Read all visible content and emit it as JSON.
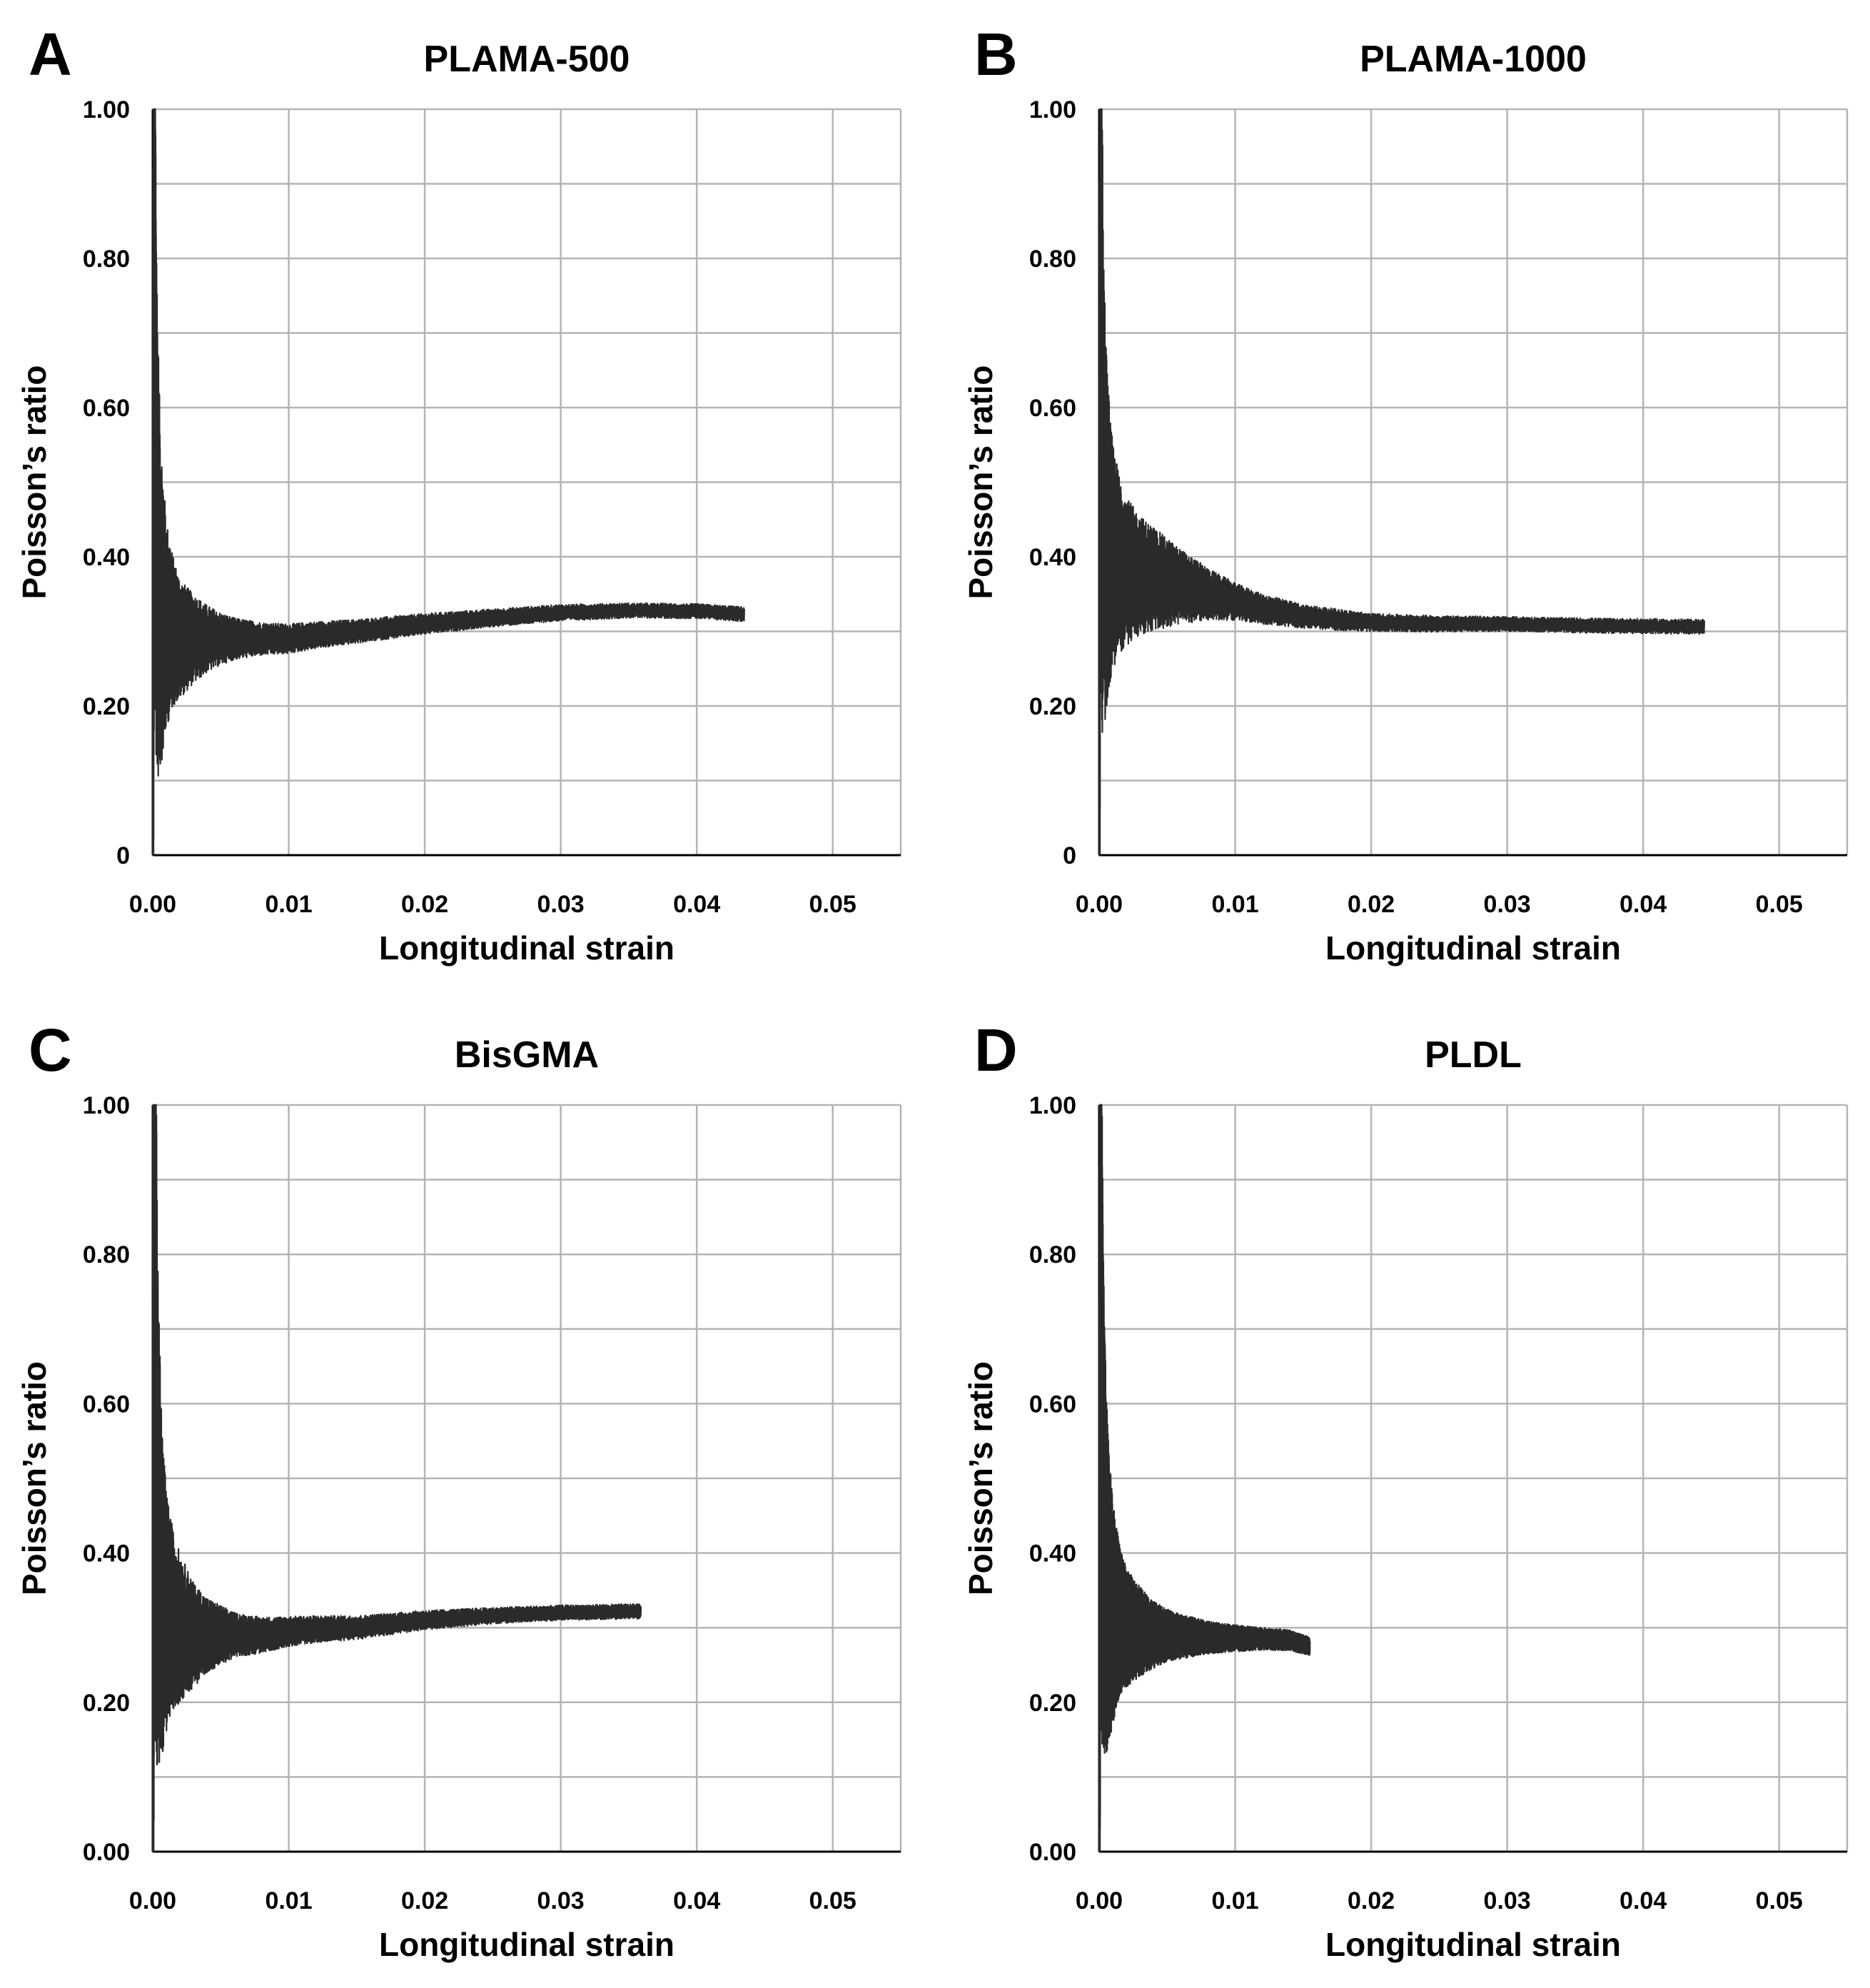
{
  "figure": {
    "panels": [
      {
        "letter": "A",
        "chart_index": 0
      },
      {
        "letter": "B",
        "chart_index": 1
      },
      {
        "letter": "C",
        "chart_index": 2
      },
      {
        "letter": "D",
        "chart_index": 3
      }
    ]
  },
  "chart_data": [
    {
      "type": "line",
      "title": "PLAMA-500",
      "xlabel": "Longitudinal strain",
      "ylabel": "Poisson’s ratio",
      "xlim": [
        0,
        0.055
      ],
      "ylim": [
        0,
        1.0
      ],
      "x_ticks": [
        0.0,
        0.01,
        0.02,
        0.03,
        0.04,
        0.05
      ],
      "x_tick_labels": [
        "0.00",
        "0.01",
        "0.02",
        "0.03",
        "0.04",
        "0.05"
      ],
      "y_ticks": [
        0,
        0.2,
        0.4,
        0.6,
        0.8,
        1.0
      ],
      "y_tick_labels": [
        "0",
        "0.20",
        "0.40",
        "0.60",
        "0.80",
        "1.00"
      ],
      "y_minor_gridlines": [
        0.1,
        0.3,
        0.5,
        0.7,
        0.9
      ],
      "grid": true,
      "series": [
        {
          "name": "PLAMA-500",
          "x": [
            0.0,
            0.0001,
            0.0002,
            0.0003,
            0.0004,
            0.0005,
            0.0006,
            0.0008,
            0.001,
            0.0015,
            0.002,
            0.003,
            0.004,
            0.005,
            0.006,
            0.008,
            0.01,
            0.012,
            0.015,
            0.02,
            0.025,
            0.03,
            0.035,
            0.04,
            0.0435
          ],
          "y": [
            0.0,
            0.82,
            0.6,
            0.45,
            0.4,
            0.36,
            0.34,
            0.32,
            0.31,
            0.3,
            0.29,
            0.29,
            0.29,
            0.29,
            0.29,
            0.29,
            0.29,
            0.295,
            0.3,
            0.31,
            0.318,
            0.325,
            0.328,
            0.327,
            0.323
          ],
          "noise_band": [
            0.8,
            0.6,
            0.45,
            0.35,
            0.3,
            0.25,
            0.22,
            0.18,
            0.14,
            0.1,
            0.08,
            0.06,
            0.045,
            0.035,
            0.028,
            0.022,
            0.02,
            0.018,
            0.016,
            0.014,
            0.012,
            0.011,
            0.01,
            0.01,
            0.01
          ]
        }
      ]
    },
    {
      "type": "line",
      "title": "PLAMA-1000",
      "xlabel": "Longitudinal strain",
      "ylabel": "Poisson’s ratio",
      "xlim": [
        0,
        0.055
      ],
      "ylim": [
        0,
        1.0
      ],
      "x_ticks": [
        0.0,
        0.01,
        0.02,
        0.03,
        0.04,
        0.05
      ],
      "x_tick_labels": [
        "0.00",
        "0.01",
        "0.02",
        "0.03",
        "0.04",
        "0.05"
      ],
      "y_ticks": [
        0,
        0.2,
        0.4,
        0.6,
        0.8,
        1.0
      ],
      "y_tick_labels": [
        "0",
        "0.20",
        "0.40",
        "0.60",
        "0.80",
        "1.00"
      ],
      "y_minor_gridlines": [
        0.1,
        0.3,
        0.5,
        0.7,
        0.9
      ],
      "grid": true,
      "series": [
        {
          "name": "PLAMA-1000",
          "x": [
            0.0,
            0.0001,
            0.0002,
            0.0003,
            0.0005,
            0.0007,
            0.001,
            0.0015,
            0.002,
            0.003,
            0.004,
            0.005,
            0.006,
            0.008,
            0.01,
            0.012,
            0.015,
            0.018,
            0.02,
            0.025,
            0.03,
            0.035,
            0.04,
            0.0445
          ],
          "y": [
            0.0,
            0.83,
            0.62,
            0.5,
            0.44,
            0.42,
            0.4,
            0.39,
            0.38,
            0.375,
            0.37,
            0.365,
            0.36,
            0.35,
            0.34,
            0.33,
            0.32,
            0.315,
            0.312,
            0.31,
            0.31,
            0.308,
            0.307,
            0.306
          ],
          "noise_band": [
            0.8,
            0.6,
            0.45,
            0.35,
            0.25,
            0.2,
            0.15,
            0.12,
            0.1,
            0.08,
            0.07,
            0.06,
            0.05,
            0.035,
            0.025,
            0.02,
            0.016,
            0.014,
            0.012,
            0.011,
            0.01,
            0.01,
            0.01,
            0.01
          ]
        }
      ]
    },
    {
      "type": "line",
      "title": "BisGMA",
      "xlabel": "Longitudinal strain",
      "ylabel": "Poisson’s ratio",
      "xlim": [
        0,
        0.055
      ],
      "ylim": [
        0,
        1.0
      ],
      "x_ticks": [
        0.0,
        0.01,
        0.02,
        0.03,
        0.04,
        0.05
      ],
      "x_tick_labels": [
        "0.00",
        "0.01",
        "0.02",
        "0.03",
        "0.04",
        "0.05"
      ],
      "y_ticks": [
        0,
        0.2,
        0.4,
        0.6,
        0.8,
        1.0
      ],
      "y_tick_labels": [
        "0.00",
        "0.20",
        "0.40",
        "0.60",
        "0.80",
        "1.00"
      ],
      "y_minor_gridlines": [
        0.1,
        0.3,
        0.5,
        0.7,
        0.9
      ],
      "grid": true,
      "series": [
        {
          "name": "BisGMA",
          "x": [
            0.0,
            0.0001,
            0.0002,
            0.0003,
            0.0005,
            0.0007,
            0.001,
            0.0015,
            0.002,
            0.003,
            0.004,
            0.005,
            0.006,
            0.008,
            0.01,
            0.012,
            0.015,
            0.02,
            0.025,
            0.03,
            0.0359
          ],
          "y": [
            0.0,
            1.0,
            0.7,
            0.5,
            0.4,
            0.35,
            0.32,
            0.31,
            0.3,
            0.29,
            0.29,
            0.29,
            0.29,
            0.29,
            0.295,
            0.298,
            0.3,
            0.31,
            0.316,
            0.32,
            0.322
          ],
          "noise_band": [
            0.9,
            0.8,
            0.6,
            0.4,
            0.28,
            0.22,
            0.16,
            0.12,
            0.1,
            0.07,
            0.05,
            0.04,
            0.03,
            0.024,
            0.02,
            0.018,
            0.016,
            0.013,
            0.011,
            0.01,
            0.01
          ]
        }
      ]
    },
    {
      "type": "line",
      "title": "PLDL",
      "xlabel": "Longitudinal strain",
      "ylabel": "Poisson’s ratio",
      "xlim": [
        0,
        0.055
      ],
      "ylim": [
        0,
        1.0
      ],
      "x_ticks": [
        0.0,
        0.01,
        0.02,
        0.03,
        0.04,
        0.05
      ],
      "x_tick_labels": [
        "0.00",
        "0.01",
        "0.02",
        "0.03",
        "0.04",
        "0.05"
      ],
      "y_ticks": [
        0,
        0.2,
        0.4,
        0.6,
        0.8,
        1.0
      ],
      "y_tick_labels": [
        "0.00",
        "0.20",
        "0.40",
        "0.60",
        "0.80",
        "1.00"
      ],
      "y_minor_gridlines": [
        0.1,
        0.3,
        0.5,
        0.7,
        0.9
      ],
      "grid": true,
      "series": [
        {
          "name": "PLDL",
          "x": [
            0.0,
            0.0001,
            0.0002,
            0.0003,
            0.0005,
            0.0007,
            0.001,
            0.0015,
            0.002,
            0.003,
            0.004,
            0.005,
            0.006,
            0.008,
            0.01,
            0.012,
            0.014,
            0.0155
          ],
          "y": [
            0.0,
            0.82,
            0.6,
            0.45,
            0.38,
            0.34,
            0.32,
            0.31,
            0.3,
            0.295,
            0.29,
            0.29,
            0.288,
            0.287,
            0.286,
            0.285,
            0.283,
            0.275
          ],
          "noise_band": [
            0.8,
            0.6,
            0.45,
            0.35,
            0.25,
            0.2,
            0.15,
            0.1,
            0.08,
            0.06,
            0.045,
            0.035,
            0.03,
            0.022,
            0.018,
            0.015,
            0.014,
            0.012
          ]
        }
      ]
    }
  ]
}
